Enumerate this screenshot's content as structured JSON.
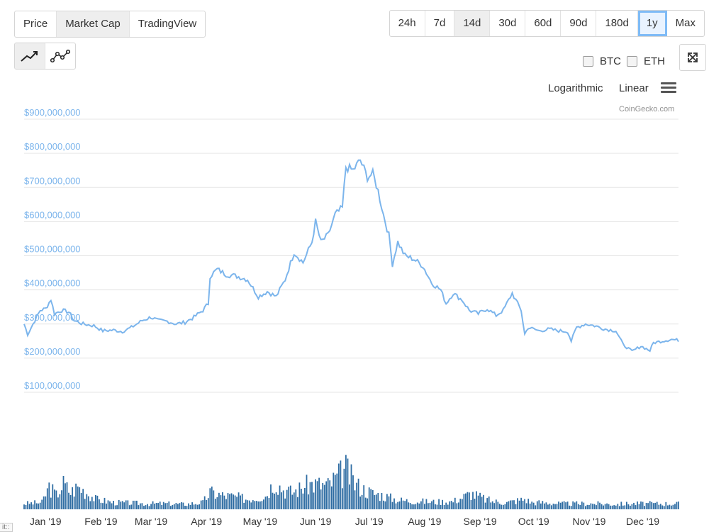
{
  "view_tabs": [
    {
      "label": "Price",
      "active": false
    },
    {
      "label": "Market Cap",
      "active": true
    },
    {
      "label": "TradingView",
      "active": false
    }
  ],
  "range_tabs": [
    {
      "label": "24h",
      "state": "normal"
    },
    {
      "label": "7d",
      "state": "normal"
    },
    {
      "label": "14d",
      "state": "active"
    },
    {
      "label": "30d",
      "state": "normal"
    },
    {
      "label": "60d",
      "state": "normal"
    },
    {
      "label": "90d",
      "state": "normal"
    },
    {
      "label": "180d",
      "state": "normal"
    },
    {
      "label": "1y",
      "state": "selected"
    },
    {
      "label": "Max",
      "state": "normal"
    }
  ],
  "chart_type_icons": [
    "line-chart-icon",
    "line-points-chart-icon"
  ],
  "compare": {
    "btc": "BTC",
    "eth": "ETH"
  },
  "scale": {
    "log": "Logarithmic",
    "linear": "Linear"
  },
  "credit": "CoinGecko.com",
  "footer_fragment": "it::",
  "colors": {
    "series": "#7cb5ec",
    "volume": "#2f6da3",
    "grid": "#e6e6e6",
    "axis_label": "#7cb5ec"
  },
  "chart_data": {
    "type": "line",
    "title": "",
    "xlabel": "",
    "ylabel": "",
    "ylim": [
      0,
      900000000
    ],
    "y_ticks": [
      "$100,000,000",
      "$200,000,000",
      "$300,000,000",
      "$400,000,000",
      "$500,000,000",
      "$600,000,000",
      "$700,000,000",
      "$800,000,000",
      "$900,000,000"
    ],
    "x_tick_labels": [
      "Jan '19",
      "Feb '19",
      "Mar '19",
      "Apr '19",
      "May '19",
      "Jun '19",
      "Jul '19",
      "Aug '19",
      "Sep '19",
      "Oct '19",
      "Nov '19",
      "Dec '19"
    ],
    "x_range": [
      "2018-12-20",
      "2019-12-21"
    ],
    "grid": true,
    "legend": "none",
    "series": [
      {
        "values_kind": "market_cap_usd",
        "points": [
          [
            "2018-12-20",
            300000000
          ],
          [
            "2018-12-22",
            270000000
          ],
          [
            "2018-12-25",
            300000000
          ],
          [
            "2018-12-29",
            340000000
          ],
          [
            "2019-01-01",
            345000000
          ],
          [
            "2019-01-04",
            372000000
          ],
          [
            "2019-01-06",
            330000000
          ],
          [
            "2019-01-10",
            340000000
          ],
          [
            "2019-01-14",
            335000000
          ],
          [
            "2019-01-17",
            310000000
          ],
          [
            "2019-01-22",
            300000000
          ],
          [
            "2019-01-28",
            295000000
          ],
          [
            "2019-02-02",
            280000000
          ],
          [
            "2019-02-08",
            282000000
          ],
          [
            "2019-02-13",
            278000000
          ],
          [
            "2019-02-18",
            290000000
          ],
          [
            "2019-02-24",
            310000000
          ],
          [
            "2019-03-01",
            320000000
          ],
          [
            "2019-03-05",
            310000000
          ],
          [
            "2019-03-10",
            308000000
          ],
          [
            "2019-03-15",
            300000000
          ],
          [
            "2019-03-20",
            305000000
          ],
          [
            "2019-03-25",
            320000000
          ],
          [
            "2019-03-30",
            340000000
          ],
          [
            "2019-04-02",
            360000000
          ],
          [
            "2019-04-03",
            440000000
          ],
          [
            "2019-04-07",
            460000000
          ],
          [
            "2019-04-12",
            445000000
          ],
          [
            "2019-04-18",
            440000000
          ],
          [
            "2019-04-24",
            430000000
          ],
          [
            "2019-04-30",
            380000000
          ],
          [
            "2019-05-05",
            395000000
          ],
          [
            "2019-05-10",
            380000000
          ],
          [
            "2019-05-15",
            430000000
          ],
          [
            "2019-05-20",
            510000000
          ],
          [
            "2019-05-25",
            480000000
          ],
          [
            "2019-05-30",
            540000000
          ],
          [
            "2019-06-01",
            600000000
          ],
          [
            "2019-06-04",
            540000000
          ],
          [
            "2019-06-08",
            560000000
          ],
          [
            "2019-06-12",
            620000000
          ],
          [
            "2019-06-16",
            640000000
          ],
          [
            "2019-06-18",
            760000000
          ],
          [
            "2019-06-22",
            750000000
          ],
          [
            "2019-06-26",
            780000000
          ],
          [
            "2019-06-30",
            730000000
          ],
          [
            "2019-07-03",
            740000000
          ],
          [
            "2019-07-06",
            690000000
          ],
          [
            "2019-07-09",
            620000000
          ],
          [
            "2019-07-12",
            560000000
          ],
          [
            "2019-07-14",
            475000000
          ],
          [
            "2019-07-17",
            540000000
          ],
          [
            "2019-07-21",
            500000000
          ],
          [
            "2019-07-26",
            490000000
          ],
          [
            "2019-07-31",
            470000000
          ],
          [
            "2019-08-05",
            420000000
          ],
          [
            "2019-08-10",
            400000000
          ],
          [
            "2019-08-13",
            360000000
          ],
          [
            "2019-08-17",
            390000000
          ],
          [
            "2019-08-22",
            370000000
          ],
          [
            "2019-08-26",
            340000000
          ],
          [
            "2019-08-31",
            330000000
          ],
          [
            "2019-09-05",
            345000000
          ],
          [
            "2019-09-10",
            325000000
          ],
          [
            "2019-09-14",
            340000000
          ],
          [
            "2019-09-19",
            390000000
          ],
          [
            "2019-09-24",
            340000000
          ],
          [
            "2019-09-26",
            270000000
          ],
          [
            "2019-09-28",
            290000000
          ],
          [
            "2019-10-04",
            280000000
          ],
          [
            "2019-10-10",
            285000000
          ],
          [
            "2019-10-15",
            280000000
          ],
          [
            "2019-10-20",
            278000000
          ],
          [
            "2019-10-22",
            250000000
          ],
          [
            "2019-10-25",
            290000000
          ],
          [
            "2019-10-30",
            300000000
          ],
          [
            "2019-11-04",
            295000000
          ],
          [
            "2019-11-10",
            285000000
          ],
          [
            "2019-11-16",
            280000000
          ],
          [
            "2019-11-20",
            240000000
          ],
          [
            "2019-11-25",
            220000000
          ],
          [
            "2019-11-30",
            235000000
          ],
          [
            "2019-12-05",
            222000000
          ],
          [
            "2019-12-07",
            245000000
          ],
          [
            "2019-12-12",
            250000000
          ],
          [
            "2019-12-17",
            255000000
          ],
          [
            "2019-12-21",
            252000000
          ]
        ]
      }
    ],
    "volume_note": "unlabeled volume bars beneath the main chart",
    "volume_profile": [
      [
        0,
        0.1
      ],
      [
        10,
        0.12
      ],
      [
        14,
        0.4
      ],
      [
        18,
        0.25
      ],
      [
        22,
        0.45
      ],
      [
        26,
        0.3
      ],
      [
        30,
        0.4
      ],
      [
        35,
        0.3
      ],
      [
        40,
        0.18
      ],
      [
        50,
        0.12
      ],
      [
        60,
        0.11
      ],
      [
        70,
        0.1
      ],
      [
        80,
        0.1
      ],
      [
        90,
        0.09
      ],
      [
        100,
        0.12
      ],
      [
        104,
        0.3
      ],
      [
        110,
        0.25
      ],
      [
        118,
        0.22
      ],
      [
        125,
        0.18
      ],
      [
        135,
        0.24
      ],
      [
        140,
        0.5
      ],
      [
        145,
        0.35
      ],
      [
        150,
        0.3
      ],
      [
        160,
        0.45
      ],
      [
        170,
        0.42
      ],
      [
        180,
        0.7
      ],
      [
        185,
        0.45
      ],
      [
        190,
        0.35
      ],
      [
        195,
        0.28
      ],
      [
        200,
        0.25
      ],
      [
        205,
        0.2
      ],
      [
        210,
        0.16
      ],
      [
        220,
        0.14
      ],
      [
        230,
        0.13
      ],
      [
        240,
        0.14
      ],
      [
        250,
        0.28
      ],
      [
        256,
        0.2
      ],
      [
        262,
        0.14
      ],
      [
        270,
        0.12
      ],
      [
        280,
        0.18
      ],
      [
        284,
        0.12
      ],
      [
        290,
        0.12
      ],
      [
        300,
        0.1
      ],
      [
        310,
        0.1
      ],
      [
        320,
        0.1
      ],
      [
        330,
        0.09
      ],
      [
        340,
        0.1
      ],
      [
        366,
        0.1
      ]
    ]
  }
}
